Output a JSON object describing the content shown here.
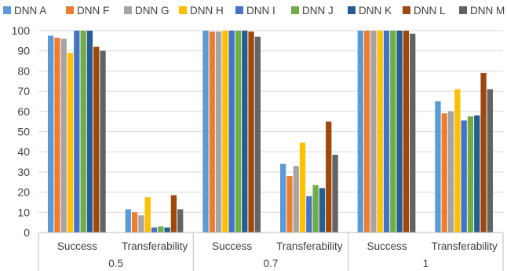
{
  "chart_data": {
    "type": "bar",
    "title": "",
    "xlabel": "",
    "ylabel": "",
    "ylim": [
      0,
      100
    ],
    "yticks": [
      0,
      10,
      20,
      30,
      40,
      50,
      60,
      70,
      80,
      90,
      100
    ],
    "grid": true,
    "legend_position": "top",
    "groups": [
      {
        "label": "0.5",
        "categories": [
          "Success",
          "Transferability"
        ]
      },
      {
        "label": "0.7",
        "categories": [
          "Success",
          "Transferability"
        ]
      },
      {
        "label": "1",
        "categories": [
          "Success",
          "Transferability"
        ]
      }
    ],
    "categories": [
      "Success",
      "Transferability",
      "Success",
      "Transferability",
      "Success",
      "Transferability"
    ],
    "series": [
      {
        "name": "DNN A",
        "color": "#5b9bd5",
        "values": [
          97.5,
          11.5,
          100,
          34,
          100,
          65
        ]
      },
      {
        "name": "DNN F",
        "color": "#ed7d31",
        "values": [
          96.5,
          10,
          99.5,
          28,
          100,
          59
        ]
      },
      {
        "name": "DNN G",
        "color": "#a5a5a5",
        "values": [
          96,
          8.5,
          99.5,
          33,
          100,
          60
        ]
      },
      {
        "name": "DNN H",
        "color": "#ffc000",
        "values": [
          89,
          17.5,
          100,
          44.5,
          100,
          71
        ]
      },
      {
        "name": "DNN I",
        "color": "#4472c4",
        "values": [
          100,
          2.5,
          100,
          18,
          100,
          55.5
        ]
      },
      {
        "name": "DNN J",
        "color": "#70ad47",
        "values": [
          100,
          3,
          100,
          23.5,
          100,
          57.5
        ]
      },
      {
        "name": "DNN K",
        "color": "#255e91",
        "values": [
          100,
          2.5,
          100,
          22,
          100,
          58
        ]
      },
      {
        "name": "DNN L",
        "color": "#9e480e",
        "values": [
          92,
          18.5,
          99.5,
          55,
          100,
          79
        ]
      },
      {
        "name": "DNN M",
        "color": "#636363",
        "values": [
          90,
          11.5,
          97,
          38.5,
          98.5,
          71
        ]
      }
    ]
  }
}
